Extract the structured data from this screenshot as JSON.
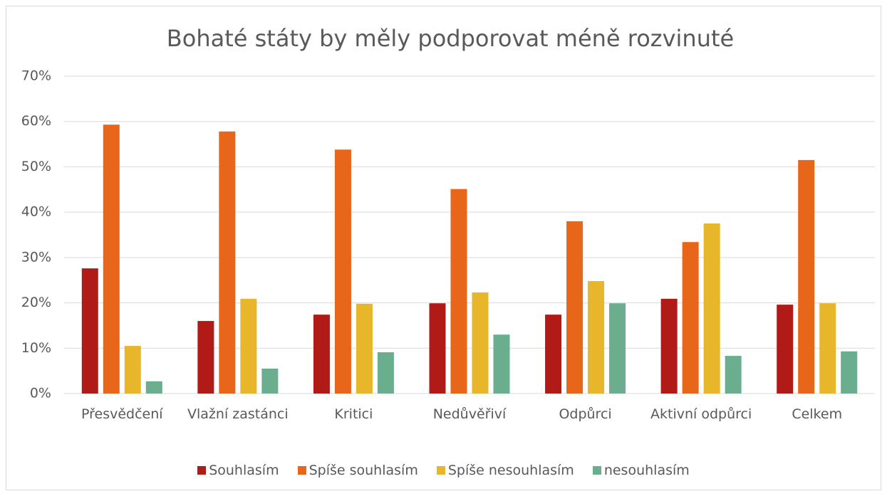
{
  "chart_data": {
    "type": "bar",
    "title": "Bohaté státy by měly podporovat méně rozvinuté",
    "categories": [
      "Přesvědčení",
      "Vlažní zastánci",
      "Kritici",
      "Nedůvěřiví",
      "Odpůrci",
      "Aktivní odpůrci",
      "Celkem"
    ],
    "series": [
      {
        "name": "Souhlasím",
        "color": "#b01a17",
        "values": [
          27.6,
          16.0,
          17.4,
          19.9,
          17.4,
          20.9,
          19.6
        ]
      },
      {
        "name": "Spíše souhlasím",
        "color": "#e8661a",
        "values": [
          59.3,
          57.8,
          53.8,
          45.1,
          38.0,
          33.4,
          51.5
        ]
      },
      {
        "name": "Spíše nesouhlasím",
        "color": "#e8b62a",
        "values": [
          10.5,
          20.9,
          19.8,
          22.3,
          24.8,
          37.5,
          19.9
        ]
      },
      {
        "name": "nesouhlasím",
        "color": "#6aae8f",
        "values": [
          2.7,
          5.5,
          9.1,
          13.0,
          19.9,
          8.3,
          9.3
        ]
      }
    ],
    "ylim": [
      0,
      70
    ],
    "yticks": [
      {
        "value": 0,
        "label": "0%"
      },
      {
        "value": 10,
        "label": "10%"
      },
      {
        "value": 20,
        "label": "20%"
      },
      {
        "value": 30,
        "label": "30%"
      },
      {
        "value": 40,
        "label": "40%"
      },
      {
        "value": 50,
        "label": "50%"
      },
      {
        "value": 60,
        "label": "60%"
      },
      {
        "value": 70,
        "label": "70%"
      }
    ],
    "grid": true,
    "legend": "bottom"
  }
}
